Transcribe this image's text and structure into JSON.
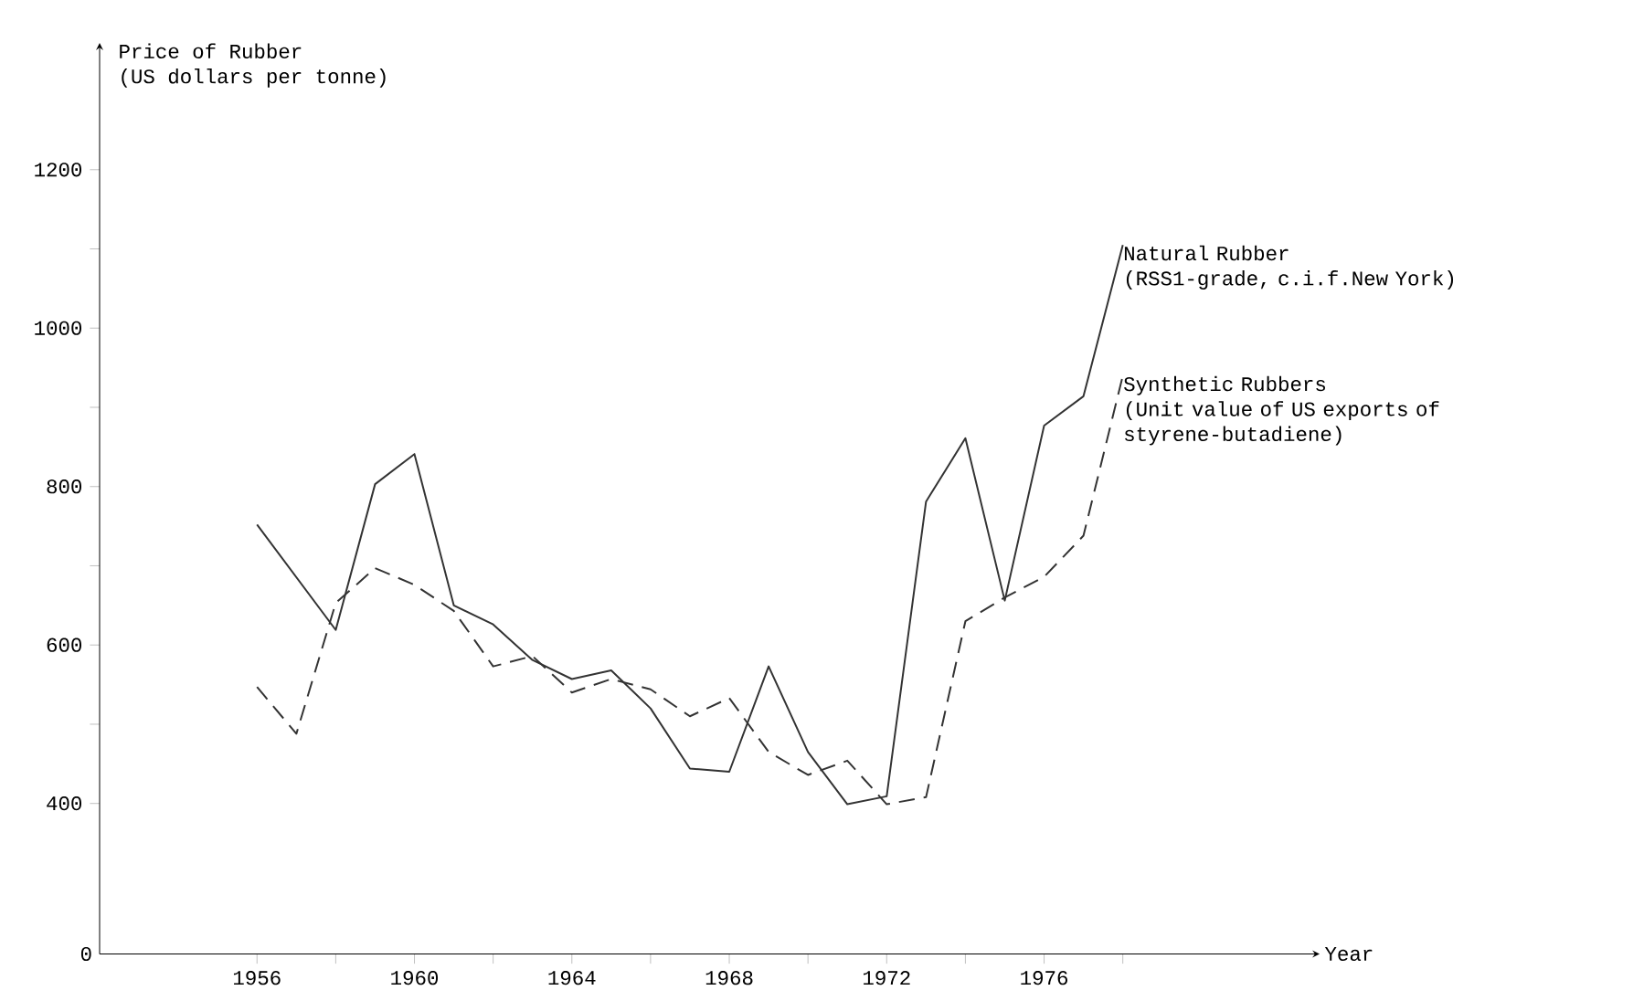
{
  "chart_data": {
    "type": "line",
    "ylabel": "Price of Rubber",
    "xlabel": "Year",
    "x": [
      1956,
      1957,
      1958,
      1959,
      1960,
      1961,
      1962,
      1963,
      1964,
      1965,
      1966,
      1967,
      1968,
      1969,
      1970,
      1971,
      1972,
      1973,
      1974,
      1975,
      1976,
      1977,
      1978
    ],
    "series": [
      {
        "name": "Natural Rubber",
        "color": "#333333",
        "line_style": "solid",
        "values": [
          752,
          null,
          619,
          803,
          841,
          650,
          626,
          581,
          557,
          568,
          520,
          444,
          440,
          573,
          465,
          399,
          409,
          781,
          861,
          656,
          877,
          914,
          1105
        ]
      },
      {
        "name": "Synthetic Rubbers",
        "color": "#333333",
        "line_style": "dashed",
        "values": [
          547,
          488,
          653,
          697,
          676,
          643,
          573,
          586,
          540,
          557,
          544,
          510,
          533,
          465,
          436,
          454,
          399,
          408,
          630,
          660,
          686,
          738,
          940
        ]
      }
    ],
    "annotations": [
      "(US dollars per tonne)",
      "(RSS1-grade, c.i.f.New York)",
      "(Unit value of US exports of styrene-butadiene)",
      "0"
    ],
    "xlim": [
      1952,
      1983
    ],
    "ylim": [
      210,
      1360
    ],
    "xticks": [
      1956,
      {
        "value": 1958,
        "label": null
      },
      1960,
      {
        "value": 1962,
        "label": null
      },
      1964,
      {
        "value": 1966,
        "label": null
      },
      1968,
      {
        "value": 1970,
        "label": null
      },
      1972,
      {
        "value": 1974,
        "label": null
      },
      1976,
      {
        "value": 1978,
        "label": null
      }
    ],
    "yticks": [
      400,
      {
        "value": 500,
        "label": null
      },
      600,
      {
        "value": 700,
        "label": null
      },
      800,
      {
        "value": 900,
        "label": null
      },
      1000,
      {
        "value": 1100,
        "label": null
      },
      1200
    ],
    "marker": "none"
  }
}
